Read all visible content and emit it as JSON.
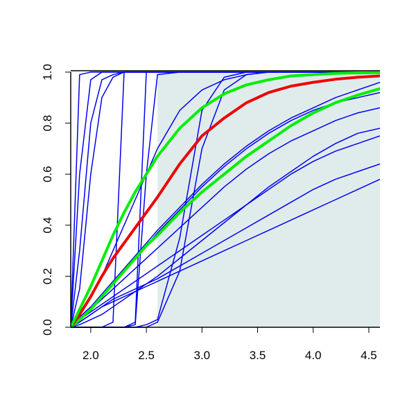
{
  "chart_data": {
    "type": "line",
    "xlim": [
      1.82,
      4.6
    ],
    "ylim": [
      0,
      1
    ],
    "xticks": [
      {
        "value": 2,
        "label": "2.0"
      },
      {
        "value": 2.5,
        "label": "2.5"
      },
      {
        "value": 3,
        "label": "3.0"
      },
      {
        "value": 3.5,
        "label": "3.5"
      },
      {
        "value": 4,
        "label": "4.0"
      },
      {
        "value": 4.5,
        "label": "4.5"
      }
    ],
    "yticks": [
      {
        "value": 0,
        "label": "0.0"
      },
      {
        "value": 0.2,
        "label": "0.2"
      },
      {
        "value": 0.4,
        "label": "0.4"
      },
      {
        "value": 0.6,
        "label": "0.6"
      },
      {
        "value": 0.8,
        "label": "0.8"
      },
      {
        "value": 1,
        "label": "1.0"
      }
    ],
    "shaded_region": {
      "x": [
        2.6,
        4.6
      ],
      "y": [
        0,
        1
      ],
      "color": "#e0ecec"
    },
    "x": [
      1.82,
      1.9,
      2.0,
      2.1,
      2.2,
      2.3,
      2.4,
      2.5,
      2.6,
      2.8,
      3.0,
      3.2,
      3.4,
      3.6,
      3.8,
      4.0,
      4.2,
      4.4,
      4.6
    ],
    "series": [
      {
        "color": "#0000ee",
        "width": 1.5,
        "values": [
          0,
          0.99,
          1,
          1,
          1,
          1,
          1,
          1,
          1,
          1,
          1,
          1,
          1,
          1,
          1,
          1,
          1,
          1,
          1
        ]
      },
      {
        "color": "#0000ee",
        "width": 1.5,
        "values": [
          0,
          0.6,
          0.97,
          1,
          1,
          1,
          1,
          1,
          1,
          1,
          1,
          1,
          1,
          1,
          1,
          1,
          1,
          1,
          1
        ]
      },
      {
        "color": "#0000ee",
        "width": 1.5,
        "values": [
          0,
          0.3,
          0.8,
          0.97,
          0.99,
          1,
          1,
          1,
          1,
          1,
          1,
          1,
          1,
          1,
          1,
          1,
          1,
          1,
          1
        ]
      },
      {
        "color": "#0000ee",
        "width": 1.5,
        "values": [
          0,
          0.15,
          0.6,
          0.9,
          0.98,
          1,
          1,
          1,
          1,
          1,
          1,
          1,
          1,
          1,
          1,
          1,
          1,
          1,
          1
        ]
      },
      {
        "color": "#0000ee",
        "width": 1.5,
        "values": [
          0,
          0,
          0,
          0,
          0.02,
          1,
          1,
          1,
          1,
          1,
          1,
          1,
          1,
          1,
          1,
          1,
          1,
          1,
          1
        ]
      },
      {
        "color": "#0000ee",
        "width": 1.5,
        "values": [
          0,
          0,
          0,
          0,
          0,
          0,
          0.02,
          1,
          1,
          1,
          1,
          1,
          1,
          1,
          1,
          1,
          1,
          1,
          1
        ]
      },
      {
        "color": "#0000ee",
        "width": 1.5,
        "values": [
          0,
          0,
          0,
          0,
          0,
          0,
          0.01,
          0.6,
          0.99,
          1,
          1,
          1,
          1,
          1,
          1,
          1,
          1,
          1,
          1
        ]
      },
      {
        "color": "#0000ee",
        "width": 1.5,
        "values": [
          0,
          0,
          0,
          0,
          0,
          0,
          0,
          0.01,
          0.03,
          0.35,
          0.85,
          0.98,
          1,
          1,
          1,
          1,
          1,
          1,
          1
        ]
      },
      {
        "color": "#0000ee",
        "width": 1.5,
        "values": [
          0,
          0,
          0,
          0,
          0,
          0,
          0,
          0,
          0.02,
          0.22,
          0.7,
          0.93,
          0.99,
          1,
          1,
          1,
          1,
          1,
          1
        ]
      },
      {
        "color": "#0000ee",
        "width": 1.5,
        "values": [
          0,
          0.02,
          0.05,
          0.08,
          0.1,
          0.12,
          0.14,
          0.16,
          0.18,
          0.22,
          0.26,
          0.3,
          0.34,
          0.38,
          0.42,
          0.46,
          0.5,
          0.54,
          0.58
        ]
      },
      {
        "color": "#0000ee",
        "width": 1.5,
        "values": [
          0,
          0.02,
          0.05,
          0.08,
          0.11,
          0.13,
          0.15,
          0.17,
          0.19,
          0.24,
          0.29,
          0.34,
          0.39,
          0.44,
          0.49,
          0.54,
          0.58,
          0.61,
          0.64
        ]
      },
      {
        "color": "#0000ee",
        "width": 1.5,
        "values": [
          0,
          0.03,
          0.06,
          0.09,
          0.12,
          0.15,
          0.18,
          0.21,
          0.24,
          0.3,
          0.36,
          0.42,
          0.48,
          0.54,
          0.6,
          0.65,
          0.69,
          0.72,
          0.75
        ]
      },
      {
        "color": "#0000ee",
        "width": 1.5,
        "values": [
          0,
          0.01,
          0.03,
          0.05,
          0.08,
          0.11,
          0.14,
          0.17,
          0.2,
          0.27,
          0.34,
          0.41,
          0.48,
          0.55,
          0.61,
          0.67,
          0.72,
          0.76,
          0.78
        ]
      },
      {
        "color": "#0000ee",
        "width": 1.5,
        "values": [
          0,
          0.03,
          0.07,
          0.11,
          0.15,
          0.19,
          0.23,
          0.27,
          0.31,
          0.39,
          0.47,
          0.55,
          0.62,
          0.68,
          0.73,
          0.77,
          0.81,
          0.84,
          0.86
        ]
      },
      {
        "color": "#0000ee",
        "width": 1.5,
        "values": [
          0,
          0.03,
          0.07,
          0.12,
          0.17,
          0.22,
          0.27,
          0.32,
          0.37,
          0.46,
          0.55,
          0.63,
          0.7,
          0.76,
          0.81,
          0.85,
          0.88,
          0.9,
          0.92
        ]
      },
      {
        "color": "#0000ee",
        "width": 1.5,
        "values": [
          0,
          0.04,
          0.08,
          0.13,
          0.18,
          0.23,
          0.28,
          0.33,
          0.38,
          0.47,
          0.56,
          0.64,
          0.71,
          0.77,
          0.82,
          0.86,
          0.9,
          0.93,
          0.96
        ]
      },
      {
        "color": "#0000ee",
        "width": 1.5,
        "values": [
          0,
          0.05,
          0.12,
          0.2,
          0.3,
          0.4,
          0.5,
          0.6,
          0.7,
          0.85,
          0.93,
          0.97,
          0.99,
          1,
          1,
          1,
          1,
          1,
          1
        ]
      },
      {
        "color": "#00ee00",
        "width": 4,
        "values": [
          0,
          0.03,
          0.07,
          0.12,
          0.17,
          0.22,
          0.27,
          0.32,
          0.36,
          0.45,
          0.53,
          0.6,
          0.67,
          0.73,
          0.79,
          0.84,
          0.88,
          0.91,
          0.935
        ]
      },
      {
        "color": "#ee0000",
        "width": 4,
        "values": [
          0,
          0.05,
          0.12,
          0.2,
          0.27,
          0.33,
          0.39,
          0.45,
          0.51,
          0.64,
          0.75,
          0.82,
          0.88,
          0.92,
          0.945,
          0.96,
          0.972,
          0.98,
          0.985
        ]
      },
      {
        "color": "#00ee00",
        "width": 4,
        "values": [
          0,
          0.07,
          0.16,
          0.26,
          0.36,
          0.45,
          0.53,
          0.6,
          0.67,
          0.78,
          0.86,
          0.915,
          0.95,
          0.97,
          0.985,
          0.99,
          0.995,
          0.997,
          0.998
        ]
      }
    ]
  }
}
